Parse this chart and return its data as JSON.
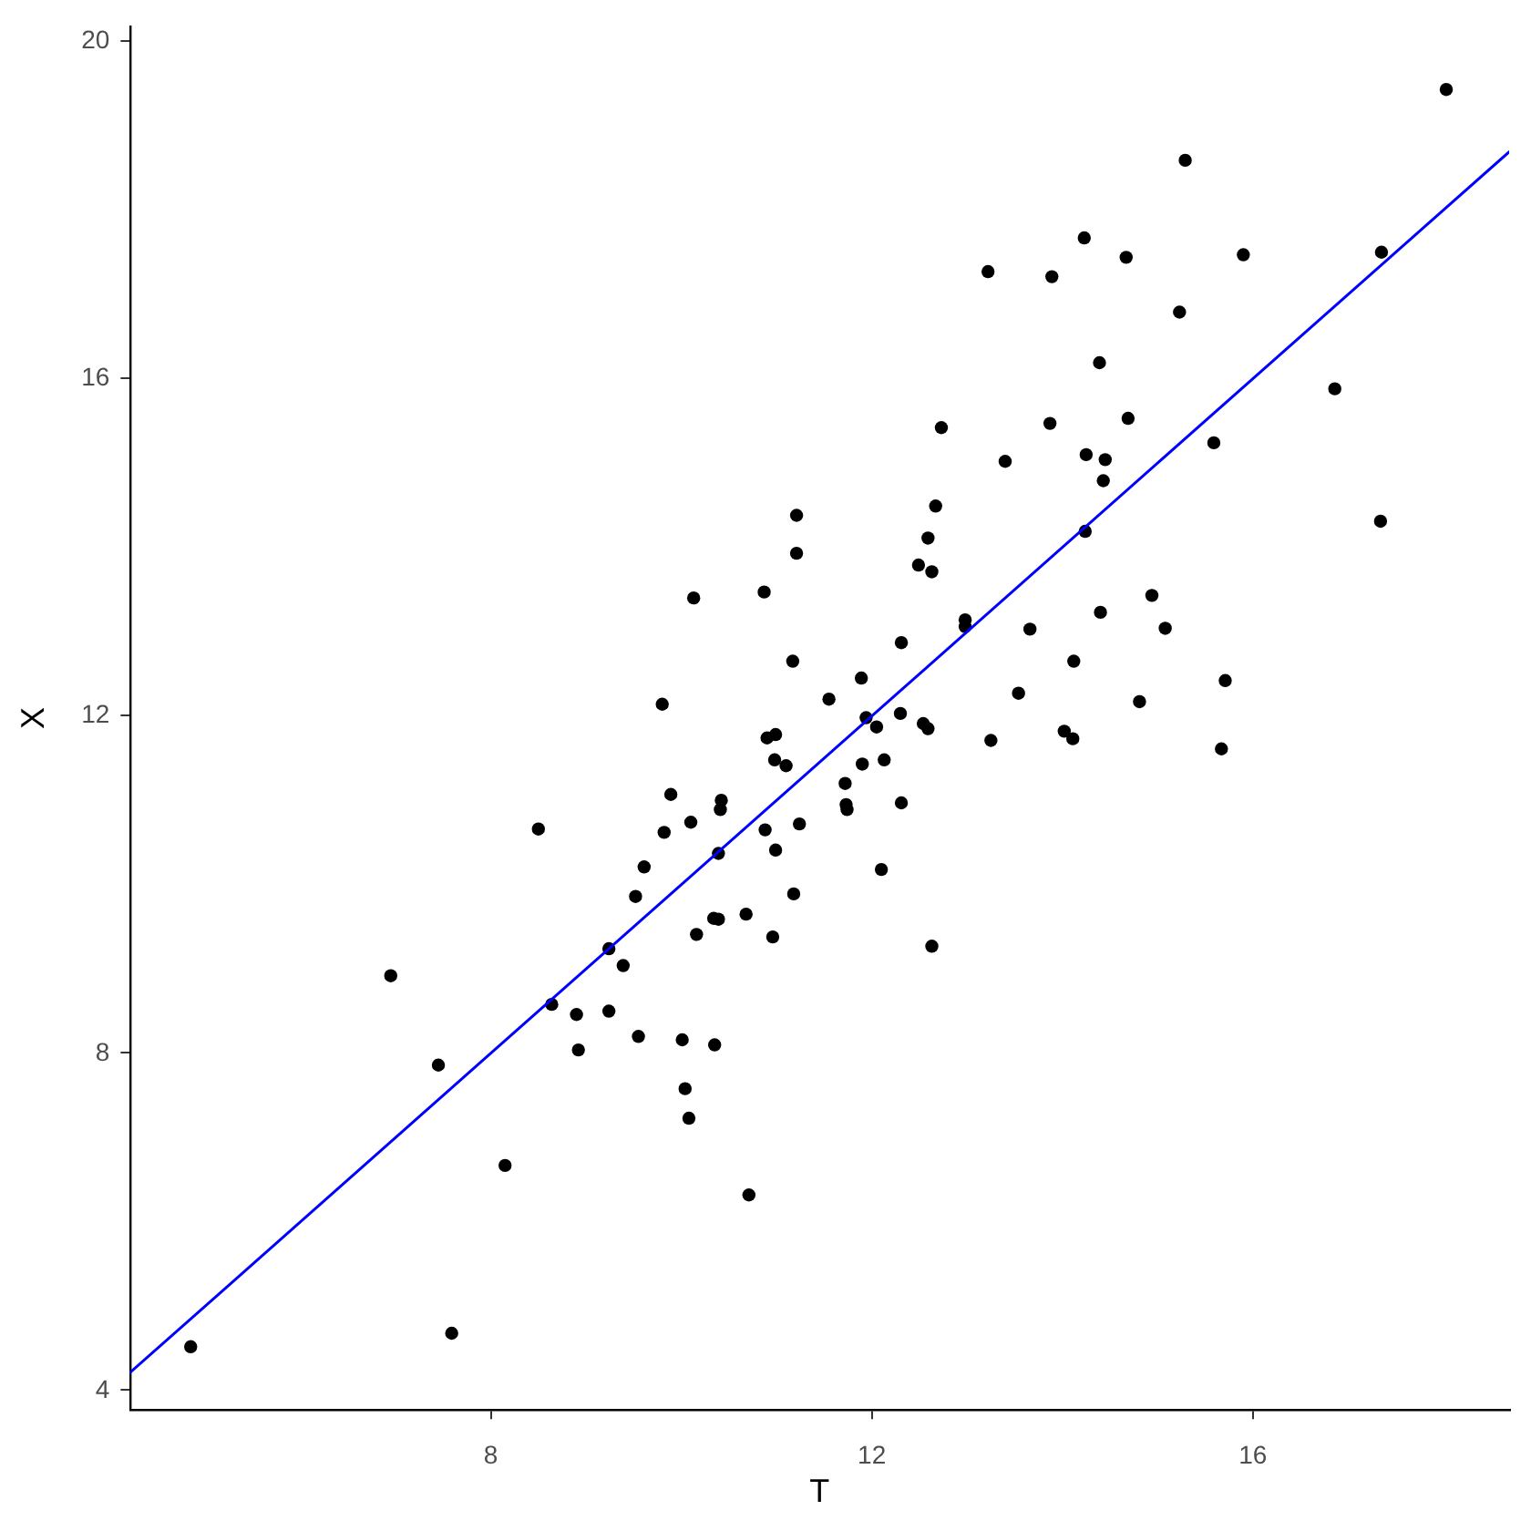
{
  "chart_data": {
    "type": "scatter",
    "xlabel": "T",
    "ylabel": "X",
    "xlim": [
      4.21,
      18.69
    ],
    "ylim": [
      3.77,
      20.18
    ],
    "xticks": [
      8,
      12,
      16
    ],
    "yticks": [
      4,
      8,
      12,
      16,
      20
    ],
    "series": [
      {
        "marker": "circle",
        "color": "#000000",
        "x": [
          4.85,
          6.95,
          7.45,
          7.59,
          8.15,
          8.5,
          8.64,
          8.9,
          8.92,
          9.24,
          9.24,
          9.39,
          9.52,
          9.55,
          9.61,
          9.8,
          9.82,
          9.89,
          10.01,
          10.04,
          10.08,
          10.1,
          10.13,
          10.16,
          10.35,
          10.34,
          10.39,
          10.39,
          10.41,
          10.42,
          10.68,
          10.71,
          10.87,
          10.88,
          10.9,
          10.96,
          10.98,
          10.99,
          10.99,
          11.1,
          11.18,
          11.17,
          11.21,
          11.21,
          11.24,
          11.55,
          11.72,
          11.73,
          11.74,
          11.89,
          11.9,
          11.94,
          12.05,
          12.1,
          12.13,
          12.3,
          12.31,
          12.31,
          12.49,
          12.54,
          12.59,
          12.59,
          12.63,
          12.63,
          12.67,
          12.73,
          12.98,
          12.98,
          13.22,
          13.25,
          13.4,
          13.54,
          13.66,
          13.87,
          13.89,
          14.02,
          14.11,
          14.12,
          14.23,
          14.25,
          14.24,
          14.39,
          14.4,
          14.43,
          14.45,
          14.67,
          14.69,
          14.81,
          14.94,
          15.08,
          15.23,
          15.29,
          15.59,
          15.67,
          15.71,
          15.9,
          16.86,
          17.35,
          17.34,
          18.03
        ],
        "values": [
          4.52,
          8.92,
          7.86,
          4.68,
          6.67,
          10.66,
          8.58,
          8.46,
          8.04,
          8.5,
          9.24,
          9.04,
          9.86,
          8.2,
          10.21,
          12.14,
          10.62,
          11.07,
          8.16,
          7.58,
          7.23,
          10.74,
          13.4,
          9.41,
          8.1,
          9.6,
          9.59,
          10.37,
          10.89,
          11.0,
          9.65,
          6.32,
          13.47,
          10.65,
          11.74,
          9.38,
          11.48,
          11.78,
          10.41,
          11.41,
          9.89,
          12.65,
          13.93,
          14.38,
          10.72,
          12.2,
          11.2,
          10.95,
          10.89,
          12.45,
          11.43,
          11.98,
          11.87,
          10.18,
          11.48,
          12.03,
          10.97,
          12.87,
          13.79,
          11.91,
          11.85,
          14.11,
          13.71,
          9.27,
          14.49,
          15.42,
          13.14,
          13.06,
          17.27,
          11.71,
          15.02,
          12.27,
          13.03,
          15.47,
          17.21,
          11.82,
          11.73,
          12.65,
          17.67,
          15.1,
          14.19,
          16.19,
          13.23,
          14.79,
          15.04,
          17.44,
          15.53,
          12.17,
          13.43,
          13.04,
          16.79,
          18.59,
          15.24,
          11.61,
          12.42,
          17.47,
          15.88,
          17.5,
          14.31,
          19.43
        ]
      },
      {
        "type": "line",
        "color": "#0000ff",
        "x": [
          4.21,
          18.69
        ],
        "values": [
          4.21,
          18.69
        ]
      }
    ]
  }
}
